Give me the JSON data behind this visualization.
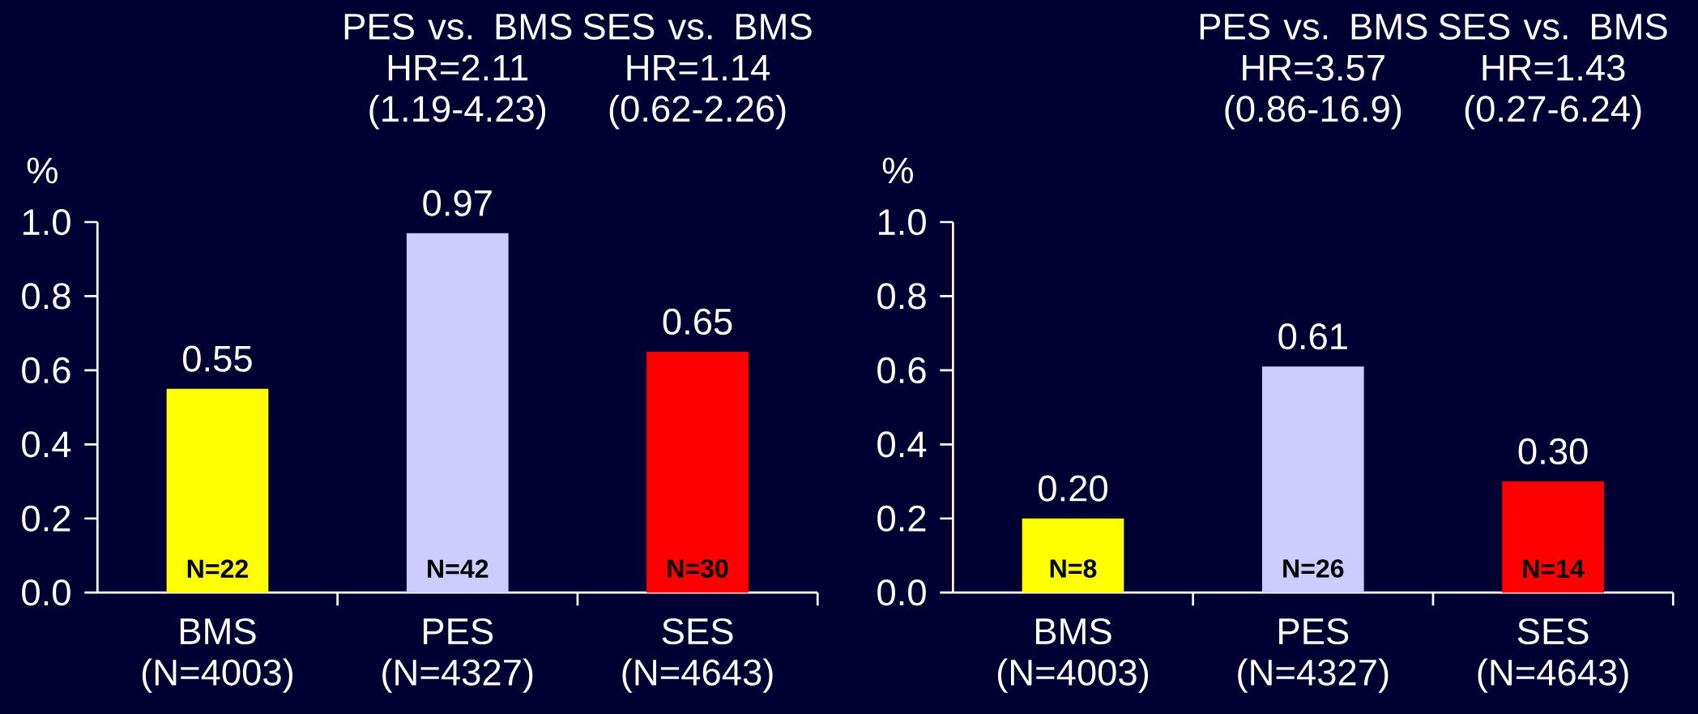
{
  "chart_data": [
    {
      "type": "bar",
      "ylabel": "%",
      "categories": [
        "BMS (N=4003)",
        "PES (N=4327)",
        "SES (N=4643)"
      ],
      "values": [
        0.55,
        0.97,
        0.65
      ],
      "value_labels": [
        "0.55",
        "0.97",
        "0.65"
      ],
      "colors": [
        "#ffff00",
        "#ccccff",
        "#ff0000"
      ],
      "ylim": [
        0,
        1
      ],
      "yticks": [
        {
          "value": 0,
          "label": "0.0"
        },
        {
          "value": 0.2,
          "label": "0.2"
        },
        {
          "value": 0.4,
          "label": "0.4"
        },
        {
          "value": 0.6,
          "label": "0.6"
        },
        {
          "value": 0.8,
          "label": "0.8"
        },
        {
          "value": 1,
          "label": "1.0"
        }
      ],
      "annotations": [
        "PES vs. BMS HR=2.11 (1.19-4.23)",
        "SES vs. BMS HR=1.14 (0.62-2.26)",
        {
          "text": "N=22",
          "x": "BMS (N=4003)",
          "y": 0
        },
        {
          "text": "N=42",
          "x": "PES (N=4327)",
          "y": 0
        },
        {
          "text": "N=30",
          "x": "SES (N=4643)",
          "y": 0
        }
      ]
    },
    {
      "type": "bar",
      "ylabel": "%",
      "categories": [
        "BMS (N=4003)",
        "PES (N=4327)",
        "SES (N=4643)"
      ],
      "values": [
        0.2,
        0.61,
        0.3
      ],
      "value_labels": [
        "0.20",
        "0.61",
        "0.30"
      ],
      "colors": [
        "#ffff00",
        "#ccccff",
        "#ff0000"
      ],
      "ylim": [
        0,
        1
      ],
      "yticks": [
        {
          "value": 0,
          "label": "0.0"
        },
        {
          "value": 0.2,
          "label": "0.2"
        },
        {
          "value": 0.4,
          "label": "0.4"
        },
        {
          "value": 0.6,
          "label": "0.6"
        },
        {
          "value": 0.8,
          "label": "0.8"
        },
        {
          "value": 1,
          "label": "1.0"
        }
      ],
      "annotations": [
        "PES vs. BMS HR=3.57 (0.86-16.9)",
        "SES vs. BMS HR=1.43 (0.27-6.24)",
        {
          "text": "N=8",
          "x": "BMS (N=4003)",
          "y": 0
        },
        {
          "text": "N=26",
          "x": "PES (N=4327)",
          "y": 0
        },
        {
          "text": "N=14",
          "x": "SES (N=4643)",
          "y": 0
        }
      ]
    }
  ]
}
